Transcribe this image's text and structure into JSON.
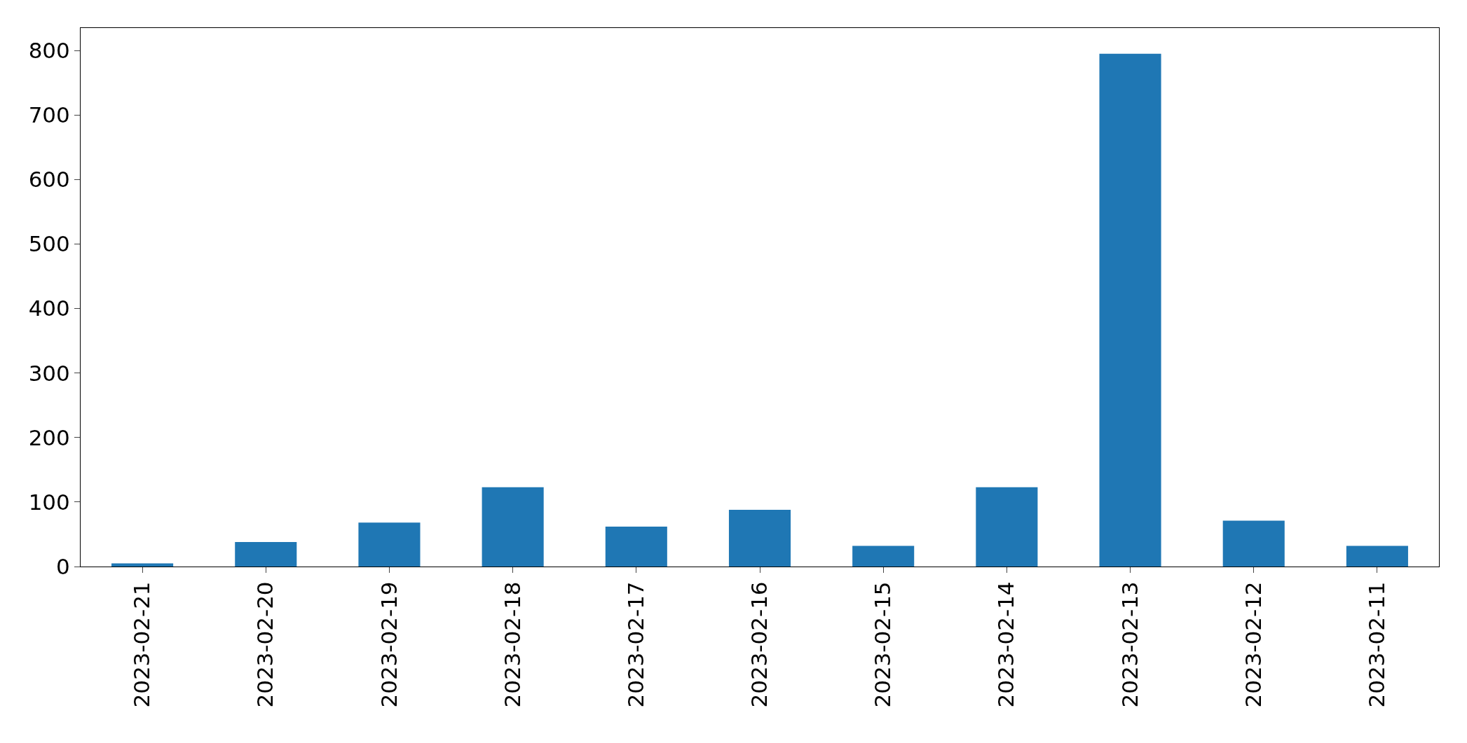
{
  "chart_data": {
    "type": "bar",
    "categories": [
      "2023-02-21",
      "2023-02-20",
      "2023-02-19",
      "2023-02-18",
      "2023-02-17",
      "2023-02-16",
      "2023-02-15",
      "2023-02-14",
      "2023-02-13",
      "2023-02-12",
      "2023-02-11"
    ],
    "values": [
      5,
      38,
      68,
      123,
      62,
      88,
      32,
      123,
      795,
      71,
      32
    ],
    "color": "#1f77b4",
    "ylim": [
      0,
      835
    ],
    "yticks": [
      0,
      100,
      200,
      300,
      400,
      500,
      600,
      700,
      800
    ]
  }
}
